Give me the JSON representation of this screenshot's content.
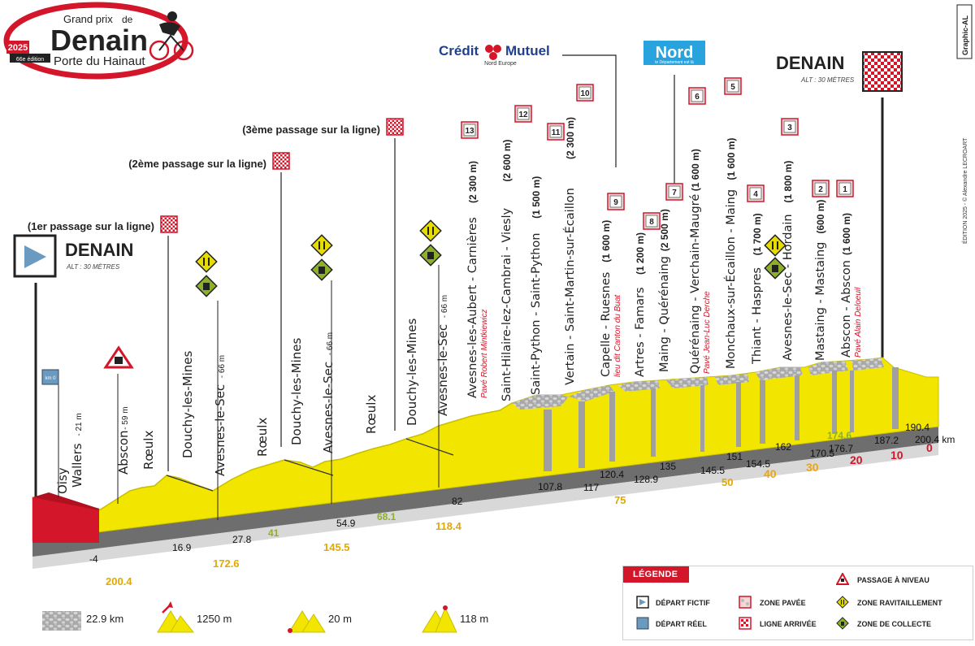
{
  "logo": {
    "line1": "Grand prix",
    "line1b": "de",
    "main": "Denain",
    "sub": "Porte du Hainaut",
    "year": "2025",
    "edition": "66e édition"
  },
  "sponsors": {
    "credit_mutuel": "Crédit",
    "credit_mutuel2": "Mutuel",
    "credit_mutuel_sub": "Nord Europe",
    "nord": "Nord",
    "nord_sub": "le Département est là"
  },
  "credit": "Graphic-AL",
  "credit_side": "ÉDITION 2025 - © Alexandre LECROART",
  "start": {
    "name": "DENAIN",
    "alt": "ALT : 30 MÈTRES"
  },
  "finish": {
    "name": "DENAIN",
    "alt": "ALT : 30 MÈTRES"
  },
  "passages": [
    {
      "label": "(1er passage sur la ligne)"
    },
    {
      "label": "(2ème passage sur la ligne)"
    },
    {
      "label": "(3ème passage sur la ligne)"
    }
  ],
  "places": [
    {
      "name": "Oisy",
      "alt": ""
    },
    {
      "name": "Wallers",
      "alt": "- 21 m"
    },
    {
      "name": "Abscon",
      "alt": "- 59 m"
    },
    {
      "name": "Rœulx",
      "alt": ""
    },
    {
      "name": "Douchy-les-Mines",
      "alt": ""
    },
    {
      "name": "Avesnes-le-Sec",
      "alt": "- 66 m"
    },
    {
      "name": "Rœulx",
      "alt": ""
    },
    {
      "name": "Douchy-les-Mines",
      "alt": ""
    },
    {
      "name": "Avesnes-le-Sec",
      "alt": "- 66 m"
    },
    {
      "name": "Rœulx",
      "alt": ""
    },
    {
      "name": "Douchy-les-Mines",
      "alt": ""
    },
    {
      "name": "Avesnes-le-Sec",
      "alt": "- 66 m"
    }
  ],
  "sectors": [
    {
      "num": "13",
      "name": "Avesnes-les-Aubert - Carnières",
      "len": "(2 300 m)",
      "note": "Pavé Robert Mintkiewicz"
    },
    {
      "num": "12",
      "name": "Saint-Hilaire-lez-Cambrai - Viesly",
      "len": "(2 600 m)",
      "note": ""
    },
    {
      "num": "11",
      "name": "Saint-Python - Saint-Python",
      "len": "(1 500 m)",
      "note": ""
    },
    {
      "num": "10",
      "name": "Vertain - Saint-Martin-sur-Écaillon",
      "len": "(2 300 m)",
      "note": ""
    },
    {
      "num": "9",
      "name": "Capelle - Ruesnes",
      "len": "(1 600 m)",
      "note": "lieu dit Canton du Buat"
    },
    {
      "num": "8",
      "name": "Artres - Famars",
      "len": "(1 200 m)",
      "note": ""
    },
    {
      "num": "7",
      "name": "Maing - Quérénaing",
      "len": "(2 500 m)",
      "note": ""
    },
    {
      "num": "6",
      "name": "Quérénaing - Verchain-Maugré",
      "len": "(1 600 m)",
      "note": "Pavé Jean-Luc Derche"
    },
    {
      "num": "5",
      "name": "Monchaux-sur-Écaillon - Maing",
      "len": "(1 600 m)",
      "note": ""
    },
    {
      "num": "4",
      "name": "Thiant - Haspres",
      "len": "(1 700 m)",
      "note": ""
    },
    {
      "num": "3",
      "name": "Avesnes-le-Sec - Hordain",
      "len": "(1 800 m)",
      "note": ""
    },
    {
      "num": "2",
      "name": "Mastaing - Mastaing",
      "len": "(600 m)",
      "note": ""
    },
    {
      "num": "1",
      "name": "Abscon - Abscon",
      "len": "(1 600 m)",
      "note": "Pavé Alain Deloeuil"
    }
  ],
  "km_marker": "km 0",
  "km_top": [
    "-4",
    "16.9",
    "27.8",
    "41",
    "54.9",
    "68.1",
    "82",
    "107.8",
    "117",
    "120.4",
    "128.9",
    "135",
    "145.5",
    "151",
    "154.5",
    "162",
    "170.5",
    "174.6",
    "176.7",
    "187.2",
    "190.4",
    "200.4 km"
  ],
  "km_remaining": [
    "200.4",
    "172.6",
    "145.5",
    "118.4",
    "75",
    "50",
    "40",
    "30",
    "20",
    "10",
    "0"
  ],
  "legend": {
    "title": "LÉGENDE",
    "items": [
      {
        "label": "DÉPART FICTIF",
        "icon": "fictive-start-icon"
      },
      {
        "label": "DÉPART RÉEL",
        "icon": "real-start-icon"
      },
      {
        "label": "ZONE PAVÉE",
        "icon": "cobbles-icon"
      },
      {
        "label": "LIGNE ARRIVÉE",
        "icon": "finish-flag-icon"
      },
      {
        "label": "PASSAGE À NIVEAU",
        "icon": "level-crossing-icon"
      },
      {
        "label": "ZONE RAVITAILLEMENT",
        "icon": "feed-zone-icon"
      },
      {
        "label": "ZONE DE COLLECTE",
        "icon": "waste-zone-icon"
      }
    ]
  },
  "stats": {
    "cobbles": "22.9 km",
    "max_climb": "1250 m",
    "min_alt": "20 m",
    "max_alt": "118 m"
  },
  "colors": {
    "red": "#d3162a",
    "yellow": "#f2e600",
    "yellow_dark": "#c9bf00",
    "grey_band": "#6e6e6e",
    "green": "#8db02a",
    "orange": "#f0a500"
  }
}
